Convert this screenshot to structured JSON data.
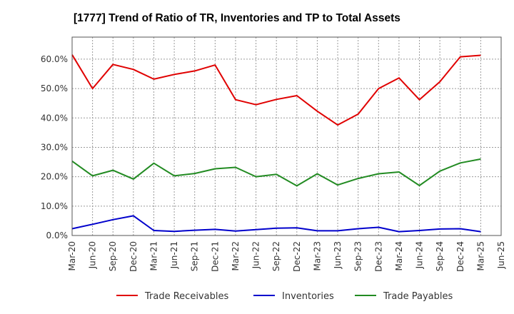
{
  "chart_data": {
    "type": "line",
    "title": "[1777]  Trend of Ratio of TR, Inventories and TP to Total Assets",
    "xlabel": "",
    "ylabel": "",
    "ylim": [
      0,
      67.5
    ],
    "y_ticks": [
      0,
      10,
      20,
      30,
      40,
      50,
      60
    ],
    "y_tick_labels": [
      "0.0%",
      "10.0%",
      "20.0%",
      "30.0%",
      "40.0%",
      "50.0%",
      "60.0%"
    ],
    "grid": true,
    "legend_position": "bottom",
    "x_tick_labels": [
      "Mar-20",
      "Jun-20",
      "Sep-20",
      "Dec-20",
      "Mar-21",
      "Jun-21",
      "Sep-21",
      "Dec-21",
      "Mar-22",
      "Jun-22",
      "Sep-22",
      "Dec-22",
      "Mar-23",
      "Jun-23",
      "Sep-23",
      "Dec-23",
      "Mar-24",
      "Jun-24",
      "Sep-24",
      "Dec-24",
      "Mar-25",
      "Jun-25"
    ],
    "categories": [
      "Mar-20",
      "Jun-20",
      "Sep-20",
      "Dec-20",
      "Mar-21",
      "Jun-21",
      "Sep-21",
      "Dec-21",
      "Mar-22",
      "Jun-22",
      "Sep-22",
      "Dec-22",
      "Mar-23",
      "Jun-23",
      "Sep-23",
      "Dec-23",
      "Mar-24",
      "Jun-24",
      "Sep-24",
      "Dec-24",
      "Mar-25"
    ],
    "series": [
      {
        "name": "Trade Receivables",
        "color": "#e00000",
        "values": [
          61.5,
          50.0,
          58.2,
          56.5,
          53.2,
          54.8,
          56.0,
          58.0,
          46.2,
          44.5,
          46.3,
          47.6,
          42.3,
          37.6,
          41.3,
          50.0,
          53.6,
          46.2,
          52.3,
          60.8,
          61.3
        ]
      },
      {
        "name": "Inventories",
        "color": "#0000cc",
        "values": [
          2.3,
          3.8,
          5.4,
          6.7,
          1.7,
          1.4,
          1.8,
          2.1,
          1.5,
          2.0,
          2.5,
          2.6,
          1.6,
          1.6,
          2.3,
          2.8,
          1.3,
          1.7,
          2.2,
          2.3,
          1.3
        ]
      },
      {
        "name": "Trade Payables",
        "color": "#228b22",
        "values": [
          25.3,
          20.3,
          22.2,
          19.2,
          24.6,
          20.3,
          21.1,
          22.7,
          23.2,
          20.0,
          20.8,
          16.9,
          21.0,
          17.2,
          19.4,
          21.0,
          21.6,
          17.0,
          21.9,
          24.7,
          26.0
        ]
      }
    ]
  }
}
